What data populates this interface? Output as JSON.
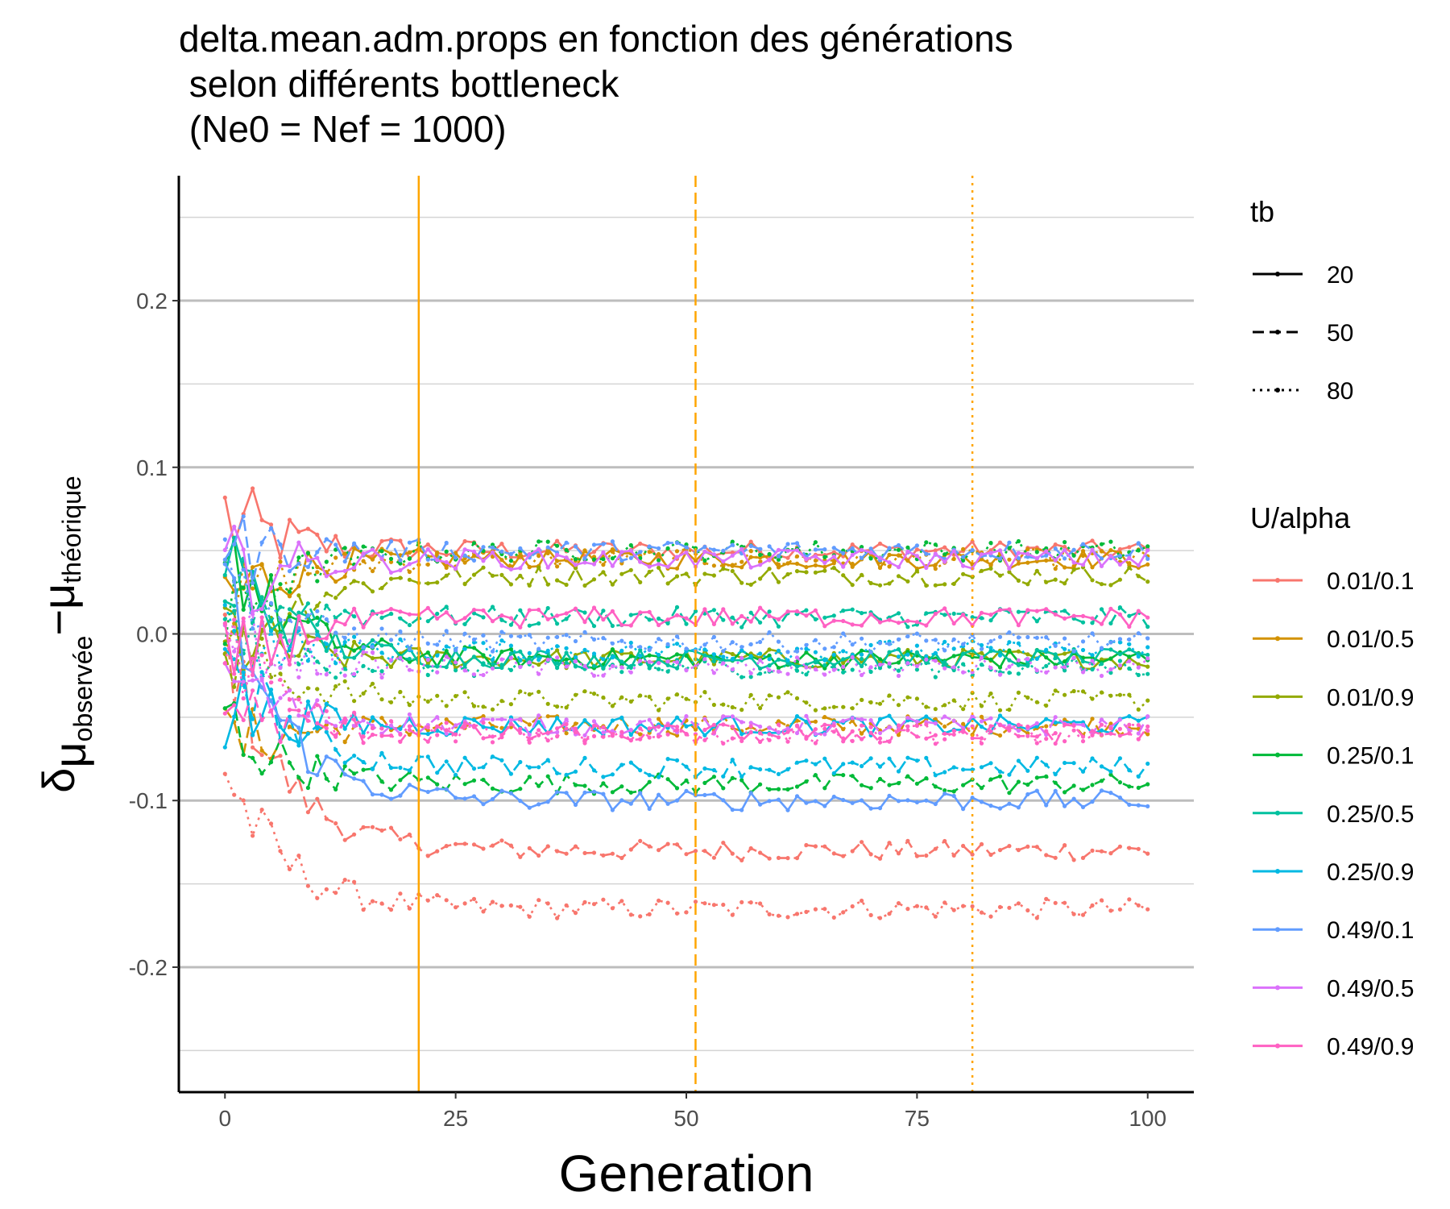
{
  "chart_data": {
    "type": "line",
    "title_lines": [
      "delta.mean.adm.props en fonction des générations",
      " selon différents bottleneck",
      " (Ne0 = Nef = 1000)"
    ],
    "xlabel": "Generation",
    "ylabel_symbol": "δ",
    "ylabel_sub1": "μ",
    "ylabel_sub1_sub": "observée",
    "ylabel_minus": "−",
    "ylabel_sub2": "μ",
    "ylabel_sub2_sub": "théorique",
    "xlim": [
      -5,
      105
    ],
    "ylim": [
      -0.275,
      0.275
    ],
    "x_ticks": [
      0,
      25,
      50,
      75,
      100
    ],
    "x_tick_labels": [
      "0",
      "25",
      "50",
      "75",
      "100"
    ],
    "y_ticks": [
      -0.2,
      -0.1,
      0.0,
      0.1,
      0.2
    ],
    "y_tick_labels": [
      "-0.2",
      "-0.1",
      "0.0",
      "0.1",
      "0.2"
    ],
    "grid": true,
    "vlines": [
      {
        "x": 21,
        "linetype": "solid",
        "color": "#FFA500"
      },
      {
        "x": 51,
        "linetype": "dashed",
        "color": "#FFA500"
      },
      {
        "x": 81,
        "linetype": "dotted",
        "color": "#FFA500"
      }
    ],
    "legend_position": "right",
    "legend_tb": {
      "title": "tb",
      "items": [
        {
          "label": "20",
          "linetype": "solid"
        },
        {
          "label": "50",
          "linetype": "dashed"
        },
        {
          "label": "80",
          "linetype": "dotted"
        }
      ]
    },
    "legend_ualpha": {
      "title": "U/alpha",
      "items": [
        {
          "label": "0.01/0.1",
          "color": "#F8766D"
        },
        {
          "label": "0.01/0.5",
          "color": "#D39200"
        },
        {
          "label": "0.01/0.9",
          "color": "#93AA00"
        },
        {
          "label": "0.25/0.1",
          "color": "#00BA38"
        },
        {
          "label": "0.25/0.5",
          "color": "#00C19F"
        },
        {
          "label": "0.25/0.9",
          "color": "#00B9E3"
        },
        {
          "label": "0.49/0.1",
          "color": "#619CFF"
        },
        {
          "label": "0.49/0.5",
          "color": "#DB72FB"
        },
        {
          "label": "0.49/0.9",
          "color": "#FF61C3"
        }
      ]
    },
    "x_start": 0,
    "x_end": 100,
    "series": [
      {
        "ualpha": "0.01/0.1",
        "tb": "20",
        "color": "#F8766D",
        "start": 0.07,
        "plateau": 0.05,
        "amp": 0.04
      },
      {
        "ualpha": "0.01/0.1",
        "tb": "50",
        "color": "#F8766D",
        "start": 0.0,
        "plateau": -0.13,
        "amp": 0.03
      },
      {
        "ualpha": "0.01/0.1",
        "tb": "80",
        "color": "#F8766D",
        "start": -0.08,
        "plateau": -0.165,
        "amp": 0.03
      },
      {
        "ualpha": "0.01/0.5",
        "tb": "20",
        "color": "#D39200",
        "start": 0.02,
        "plateau": 0.045,
        "amp": 0.04
      },
      {
        "ualpha": "0.01/0.5",
        "tb": "50",
        "color": "#D39200",
        "start": -0.07,
        "plateau": -0.055,
        "amp": 0.03
      },
      {
        "ualpha": "0.01/0.5",
        "tb": "80",
        "color": "#D39200",
        "start": 0.01,
        "plateau": 0.045,
        "amp": 0.03
      },
      {
        "ualpha": "0.01/0.9",
        "tb": "20",
        "color": "#93AA00",
        "start": 0.0,
        "plateau": -0.015,
        "amp": 0.04
      },
      {
        "ualpha": "0.01/0.9",
        "tb": "50",
        "color": "#93AA00",
        "start": -0.03,
        "plateau": 0.035,
        "amp": 0.03
      },
      {
        "ualpha": "0.01/0.9",
        "tb": "80",
        "color": "#93AA00",
        "start": 0.0,
        "plateau": -0.04,
        "amp": 0.03
      },
      {
        "ualpha": "0.25/0.1",
        "tb": "20",
        "color": "#00BA38",
        "start": 0.06,
        "plateau": -0.015,
        "amp": 0.04
      },
      {
        "ualpha": "0.25/0.1",
        "tb": "50",
        "color": "#00BA38",
        "start": -0.05,
        "plateau": -0.09,
        "amp": 0.03
      },
      {
        "ualpha": "0.25/0.1",
        "tb": "80",
        "color": "#00BA38",
        "start": 0.0,
        "plateau": 0.05,
        "amp": 0.03
      },
      {
        "ualpha": "0.25/0.5",
        "tb": "20",
        "color": "#00C19F",
        "start": 0.05,
        "plateau": -0.015,
        "amp": 0.04
      },
      {
        "ualpha": "0.25/0.5",
        "tb": "50",
        "color": "#00C19F",
        "start": 0.03,
        "plateau": 0.01,
        "amp": 0.03
      },
      {
        "ualpha": "0.25/0.5",
        "tb": "80",
        "color": "#00C19F",
        "start": 0.0,
        "plateau": -0.02,
        "amp": 0.03
      },
      {
        "ualpha": "0.25/0.9",
        "tb": "20",
        "color": "#00B9E3",
        "start": -0.04,
        "plateau": -0.055,
        "amp": 0.04
      },
      {
        "ualpha": "0.25/0.9",
        "tb": "50",
        "color": "#00B9E3",
        "start": 0.0,
        "plateau": -0.08,
        "amp": 0.03
      },
      {
        "ualpha": "0.25/0.9",
        "tb": "80",
        "color": "#00B9E3",
        "start": 0.0,
        "plateau": -0.01,
        "amp": 0.03
      },
      {
        "ualpha": "0.49/0.1",
        "tb": "20",
        "color": "#619CFF",
        "start": 0.03,
        "plateau": -0.1,
        "amp": 0.04
      },
      {
        "ualpha": "0.49/0.1",
        "tb": "50",
        "color": "#619CFF",
        "start": 0.05,
        "plateau": 0.05,
        "amp": 0.03
      },
      {
        "ualpha": "0.49/0.1",
        "tb": "80",
        "color": "#619CFF",
        "start": 0.04,
        "plateau": -0.005,
        "amp": 0.03
      },
      {
        "ualpha": "0.49/0.5",
        "tb": "20",
        "color": "#DB72FB",
        "start": 0.03,
        "plateau": 0.045,
        "amp": 0.04
      },
      {
        "ualpha": "0.49/0.5",
        "tb": "50",
        "color": "#DB72FB",
        "start": -0.02,
        "plateau": -0.055,
        "amp": 0.03
      },
      {
        "ualpha": "0.49/0.5",
        "tb": "80",
        "color": "#DB72FB",
        "start": 0.0,
        "plateau": -0.02,
        "amp": 0.03
      },
      {
        "ualpha": "0.49/0.9",
        "tb": "20",
        "color": "#FF61C3",
        "start": -0.03,
        "plateau": 0.01,
        "amp": 0.04
      },
      {
        "ualpha": "0.49/0.9",
        "tb": "50",
        "color": "#FF61C3",
        "start": -0.04,
        "plateau": -0.06,
        "amp": 0.03
      },
      {
        "ualpha": "0.49/0.9",
        "tb": "80",
        "color": "#FF61C3",
        "start": 0.0,
        "plateau": -0.06,
        "amp": 0.03
      }
    ]
  }
}
